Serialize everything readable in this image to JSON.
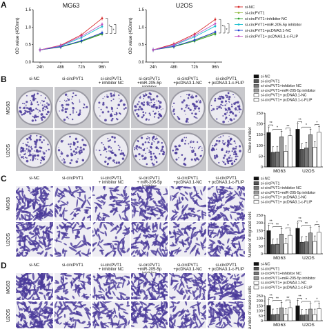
{
  "panels": {
    "a": "A",
    "b": "B",
    "c": "C",
    "d": "D"
  },
  "colors": {
    "siNC": "#d62728",
    "siCircPVT1": "#8fb83a",
    "inhibitorNC": "#2ca02c",
    "inhibitor": "#17becf",
    "pcNC": "#1f3fd0",
    "pcFLIP": "#c050c0",
    "dark": "#111111",
    "mid": "#666666",
    "light": "#9a9a9a",
    "white": "#ffffff",
    "stain": "#4a3a9a"
  },
  "legend_a": [
    "si-NC",
    "si-circPVT1",
    "si-circPVT1+inhibitor NC",
    "si-circPVT1+miR-205-5p inhibitor",
    "si-circPVT1+pcDNA3.1-NC",
    "si-circPVT1+ pcDNA3.1-c-FLIP"
  ],
  "legend_bcd": [
    "si-NC",
    "si-circPVT1",
    "si-circPVT1+inhibitor NC",
    "si-circPVT1+miR-205-5p inhibitor",
    "si-circPVT1+ pcDNA3.1-NC",
    "si-circPVT1+ pcDNA3.1-c-FLIP"
  ],
  "image_cols_b": [
    "si-NC",
    "si-circPVT1",
    "si-circPVT1\n+ inhibitor NC",
    "si-circPVT1\n+miR-205-5p inhibitor",
    "si-circPVT1\n+pcDNA3.1-NC",
    "si-circPVT1\n+ pcDNA3.1-c-FLIP"
  ],
  "image_cols_c": [
    "si-NC",
    "si-circPVT1",
    "si-circPVT1\n+ inhibitor NC",
    "si-circPVT1\n+ miR-205-5p inhibitor",
    "si-circPVT1\n+pcDNA3.1-NC",
    "si-circPVT1\n+ pcDNA3.1-c-FLIP"
  ],
  "image_cols_d": [
    "si-NC",
    "si-circPVT1",
    "si-circPVT1\n+ inhibitor NC",
    "si-circPVT1\n+miR-205-5p inhibitor",
    "si-circPVT1\n+pcDNA3.1-NC",
    "si-circPVT1\n+ pcDNA3.1-c-FLIP"
  ],
  "rows": [
    "MG63",
    "U2OS"
  ],
  "chart_data": [
    {
      "id": "line_mg63",
      "type": "line",
      "title": "MG63",
      "ylabel": "OD value (450nm)",
      "x": [
        "24h",
        "48h",
        "72h",
        "96h"
      ],
      "ylim": [
        0,
        1.5
      ],
      "yticks": [
        "0.0",
        "0.5",
        "1.0",
        "1.5"
      ],
      "series": [
        {
          "name": "si-NC",
          "values": [
            0.35,
            0.48,
            0.78,
            1.25
          ]
        },
        {
          "name": "si-circPVT1",
          "values": [
            0.35,
            0.44,
            0.6,
            0.82
          ]
        },
        {
          "name": "si-circPVT1+inhibitor NC",
          "values": [
            0.35,
            0.43,
            0.59,
            0.8
          ]
        },
        {
          "name": "si-circPVT1+miR-205-5p inhibitor",
          "values": [
            0.35,
            0.46,
            0.7,
            1.02
          ]
        },
        {
          "name": "si-circPVT1+pcDNA3.1-NC",
          "values": [
            0.35,
            0.44,
            0.61,
            0.84
          ]
        },
        {
          "name": "si-circPVT1+ pcDNA3.1-c-FLIP",
          "values": [
            0.35,
            0.47,
            0.74,
            1.08
          ]
        }
      ],
      "annotations": [
        "*",
        "*",
        "**"
      ]
    },
    {
      "id": "line_u2os",
      "type": "line",
      "title": "U2OS",
      "ylabel": "OD value (450nm)",
      "x": [
        "24h",
        "48h",
        "72h",
        "96h"
      ],
      "ylim": [
        0,
        1.5
      ],
      "yticks": [
        "0.0",
        "0.5",
        "1.0",
        "1.5"
      ],
      "series": [
        {
          "name": "si-NC",
          "values": [
            0.35,
            0.52,
            0.8,
            1.22
          ]
        },
        {
          "name": "si-circPVT1",
          "values": [
            0.35,
            0.45,
            0.62,
            0.83
          ]
        },
        {
          "name": "si-circPVT1+inhibitor NC",
          "values": [
            0.35,
            0.44,
            0.6,
            0.8
          ]
        },
        {
          "name": "si-circPVT1+miR-205-5p inhibitor",
          "values": [
            0.35,
            0.48,
            0.72,
            1.03
          ]
        },
        {
          "name": "si-circPVT1+pcDNA3.1-NC",
          "values": [
            0.35,
            0.45,
            0.63,
            0.86
          ]
        },
        {
          "name": "si-circPVT1+ pcDNA3.1-c-FLIP",
          "values": [
            0.35,
            0.49,
            0.76,
            1.1
          ]
        }
      ],
      "annotations": [
        "*",
        "*",
        "**"
      ]
    },
    {
      "id": "bar_clone",
      "type": "bar",
      "ylabel": "Clone number",
      "categories": [
        "MG63",
        "U2OS"
      ],
      "ylim": [
        0,
        250
      ],
      "yticks": [
        "0",
        "50",
        "100",
        "150",
        "200",
        "250"
      ],
      "series": [
        {
          "name": "si-NC",
          "values": [
            160,
            175
          ]
        },
        {
          "name": "si-circPVT1",
          "values": [
            68,
            82
          ]
        },
        {
          "name": "si-circPVT1+inhibitor NC",
          "values": [
            70,
            88
          ]
        },
        {
          "name": "si-circPVT1+miR-205-5p inhibitor",
          "values": [
            140,
            150
          ]
        },
        {
          "name": "si-circPVT1+ pcDNA3.1-NC",
          "values": [
            72,
            92
          ]
        },
        {
          "name": "si-circPVT1+ pcDNA3.1-c-FLIP",
          "values": [
            145,
            162
          ]
        }
      ],
      "annotations": [
        "**",
        "*",
        "**",
        "**",
        "*",
        "*"
      ]
    },
    {
      "id": "bar_migrated",
      "type": "bar",
      "ylabel": "Number of migrated cells",
      "categories": [
        "MG63",
        "U2OS"
      ],
      "ylim": [
        0,
        250
      ],
      "yticks": [
        "0",
        "50",
        "100",
        "150",
        "200",
        "250"
      ],
      "series": [
        {
          "name": "si-NC",
          "values": [
            150,
            165
          ]
        },
        {
          "name": "si-circPVT1",
          "values": [
            60,
            75
          ]
        },
        {
          "name": "si-circPVT1+inhibitor NC",
          "values": [
            62,
            78
          ]
        },
        {
          "name": "si-circPVT1+miR-205-5p inhibitor",
          "values": [
            128,
            135
          ]
        },
        {
          "name": "si-circPVT1+ pcDNA3.1-NC",
          "values": [
            65,
            80
          ]
        },
        {
          "name": "si-circPVT1+ pcDNA3.1-c-FLIP",
          "values": [
            120,
            140
          ]
        }
      ],
      "annotations": [
        "**",
        "**",
        "*",
        "**",
        "**",
        "*"
      ]
    },
    {
      "id": "bar_invasive",
      "type": "bar",
      "ylabel": "Number of invasive cells",
      "categories": [
        "MG63",
        "U2OS"
      ],
      "ylim": [
        0,
        250
      ],
      "yticks": [
        "0",
        "50",
        "100",
        "150",
        "200",
        "250"
      ],
      "series": [
        {
          "name": "si-NC",
          "values": [
            155,
            150
          ]
        },
        {
          "name": "si-circPVT1",
          "values": [
            62,
            58
          ]
        },
        {
          "name": "si-circPVT1+inhibitor NC",
          "values": [
            65,
            60
          ]
        },
        {
          "name": "si-circPVT1+miR-205-5p inhibitor",
          "values": [
            130,
            118
          ]
        },
        {
          "name": "si-circPVT1+ pcDNA3.1-NC",
          "values": [
            66,
            62
          ]
        },
        {
          "name": "si-circPVT1+ pcDNA3.1-c-FLIP",
          "values": [
            132,
            122
          ]
        }
      ],
      "annotations": [
        "**",
        "**",
        "**",
        "**",
        "*",
        "*"
      ]
    }
  ]
}
